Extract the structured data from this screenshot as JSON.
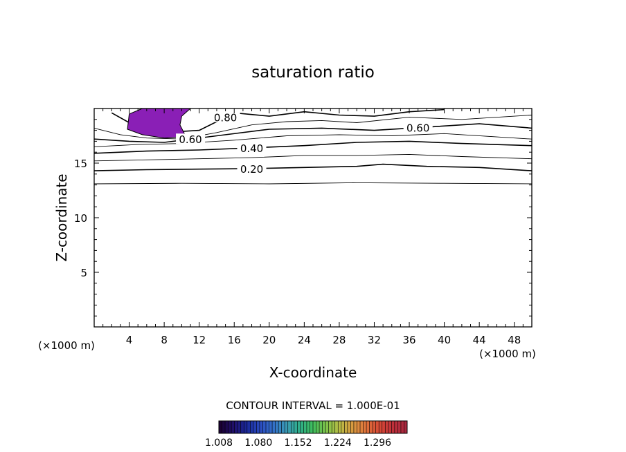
{
  "chart_data": {
    "type": "contour",
    "title": "saturation ratio",
    "xlabel": "X-coordinate",
    "ylabel": "Z-coordinate",
    "x_unit_label": "(×1000 m)",
    "xlim": [
      0,
      50
    ],
    "ylim": [
      0,
      20
    ],
    "x_ticks": [
      4,
      8,
      12,
      16,
      20,
      24,
      28,
      32,
      36,
      40,
      44,
      48
    ],
    "y_ticks": [
      5,
      10,
      15
    ],
    "contour_interval_text": "CONTOUR INTERVAL = 1.000E-01",
    "contour_labels": [
      "0.20",
      "0.40",
      "0.60",
      "0.80",
      "0.60"
    ],
    "contours": [
      {
        "level": 0.1,
        "major": false,
        "x": [
          0,
          10,
          20,
          30,
          40,
          50
        ],
        "z": [
          13.1,
          13.15,
          13.1,
          13.2,
          13.15,
          13.1
        ]
      },
      {
        "level": 0.2,
        "major": true,
        "x": [
          0,
          6,
          12,
          18,
          24,
          30,
          33,
          38,
          44,
          50
        ],
        "z": [
          14.3,
          14.4,
          14.45,
          14.5,
          14.6,
          14.7,
          14.9,
          14.7,
          14.6,
          14.3
        ]
      },
      {
        "level": 0.3,
        "major": false,
        "x": [
          0,
          6,
          12,
          18,
          24,
          30,
          36,
          42,
          50
        ],
        "z": [
          15.2,
          15.3,
          15.4,
          15.5,
          15.7,
          15.7,
          15.8,
          15.6,
          15.4
        ]
      },
      {
        "level": 0.4,
        "major": true,
        "x": [
          0,
          6,
          12,
          18,
          24,
          30,
          36,
          42,
          50
        ],
        "z": [
          15.9,
          16.1,
          16.2,
          16.4,
          16.6,
          16.9,
          17.0,
          16.8,
          16.6
        ]
      },
      {
        "level": 0.5,
        "major": false,
        "x": [
          0,
          5,
          10,
          16,
          22,
          28,
          34,
          40,
          46,
          50
        ],
        "z": [
          16.5,
          16.7,
          16.8,
          17.1,
          17.5,
          17.6,
          17.5,
          17.7,
          17.4,
          17.2
        ]
      },
      {
        "level": 0.6,
        "major": true,
        "x": [
          0,
          4,
          8,
          14,
          20,
          26,
          32,
          38,
          44,
          50
        ],
        "z": [
          17.2,
          17.0,
          16.9,
          17.5,
          18.1,
          18.2,
          18.0,
          18.3,
          18.6,
          18.2
        ]
      },
      {
        "level": 0.7,
        "major": false,
        "x": [
          0,
          3,
          6,
          10,
          14,
          18,
          22,
          26,
          30,
          36,
          42,
          50
        ],
        "z": [
          18.2,
          17.6,
          17.3,
          17.2,
          17.8,
          18.5,
          18.8,
          18.9,
          18.7,
          19.2,
          19.0,
          19.4
        ]
      },
      {
        "level": 0.8,
        "major": true,
        "x": [
          2,
          4,
          8,
          12,
          14,
          16,
          20,
          24,
          28,
          32,
          36,
          40
        ],
        "z": [
          19.6,
          18.7,
          17.8,
          18.0,
          18.8,
          19.6,
          19.3,
          19.7,
          19.4,
          19.3,
          19.7,
          19.9
        ]
      }
    ],
    "shaded_regions": [
      {
        "range": [
          1.008,
          1.02
        ],
        "color": "#8a1fb6",
        "x": [
          4.0,
          5.5,
          7.5,
          10.0,
          11.0,
          10.0,
          9.8,
          10.5,
          8.0,
          5.5,
          3.8,
          3.9
        ],
        "z": [
          19.5,
          20.0,
          20.0,
          20.0,
          20.0,
          19.3,
          18.5,
          17.4,
          17.3,
          17.6,
          18.1,
          18.8
        ]
      }
    ],
    "colorbar": {
      "min": 1.008,
      "max": 1.35,
      "tick_labels": [
        "1.008",
        "1.080",
        "1.152",
        "1.224",
        "1.296"
      ],
      "colors": [
        "#1a0033",
        "#20106b",
        "#1a2a9a",
        "#2a4bbf",
        "#3470c9",
        "#3a9ab5",
        "#2fb08a",
        "#3fbe5d",
        "#7fc24a",
        "#b7bd45",
        "#d99a40",
        "#e0733b",
        "#d84a36",
        "#c0303a",
        "#a8283f"
      ]
    },
    "grid": false,
    "legend": "colorbar-bottom"
  }
}
